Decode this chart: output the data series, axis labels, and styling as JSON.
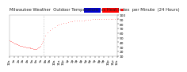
{
  "title": "Milwaukee Weather Outdoor Temperature vs Heat Index per Minute (24 Hours)",
  "legend_color1": "#0000cc",
  "legend_color2": "#ff0000",
  "line_color": "#ff0000",
  "background_color": "#ffffff",
  "vline_color": "#bbbbbb",
  "xlim": [
    0,
    1440
  ],
  "ylim": [
    10,
    100
  ],
  "ytick_values": [
    10,
    20,
    30,
    40,
    50,
    60,
    70,
    80,
    90,
    100
  ],
  "ytick_labels": [
    "10",
    "20",
    "30",
    "40",
    "50",
    "60",
    "70",
    "80",
    "90",
    "100"
  ],
  "vline_xval": 450,
  "x_data": [
    0,
    10,
    20,
    30,
    40,
    50,
    60,
    70,
    80,
    90,
    100,
    110,
    120,
    130,
    140,
    150,
    160,
    170,
    180,
    190,
    200,
    210,
    220,
    230,
    240,
    250,
    260,
    270,
    280,
    290,
    300,
    310,
    320,
    330,
    340,
    350,
    360,
    370,
    380,
    390,
    400,
    410,
    420,
    430,
    440,
    450,
    480,
    510,
    540,
    570,
    600,
    630,
    660,
    690,
    720,
    750,
    780,
    810,
    840,
    870,
    900,
    930,
    960,
    990,
    1020,
    1050,
    1080,
    1110,
    1140,
    1170,
    1200,
    1230,
    1260,
    1290,
    1320,
    1350,
    1380,
    1410,
    1440
  ],
  "y_data": [
    44,
    43,
    42,
    41,
    40,
    39,
    38,
    37,
    37,
    36,
    35,
    35,
    34,
    34,
    33,
    33,
    32,
    32,
    31,
    31,
    30,
    30,
    29,
    29,
    29,
    28,
    28,
    28,
    27,
    27,
    27,
    27,
    26,
    26,
    26,
    26,
    26,
    27,
    28,
    29,
    31,
    33,
    36,
    39,
    43,
    47,
    55,
    61,
    66,
    70,
    74,
    77,
    79,
    81,
    82,
    83,
    84,
    85,
    86,
    87,
    87,
    88,
    88,
    88,
    89,
    89,
    89,
    90,
    90,
    90,
    90,
    91,
    91,
    91,
    91,
    91,
    91,
    91,
    91
  ],
  "title_fontsize": 3.8,
  "tick_fontsize": 3.2,
  "dot_size": 0.5,
  "xtick_step_min": 60
}
